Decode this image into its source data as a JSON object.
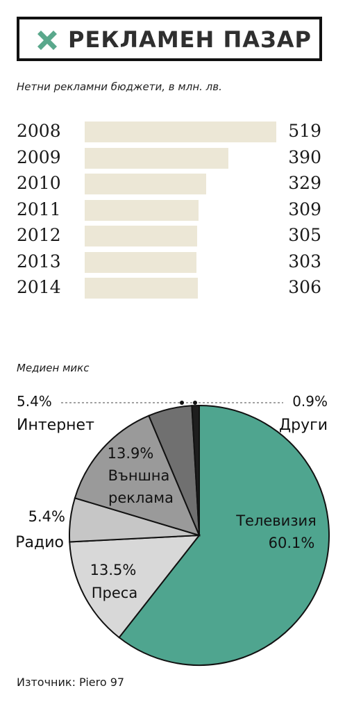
{
  "title": "РЕКЛАМЕН ПАЗАР",
  "subtitle": "Нетни рекламни бюджети, в млн. лв.",
  "colors": {
    "bar": "#ece7d6",
    "accent": "#5aa88c",
    "television": "#4fa58f",
    "press": "#d8d8d8",
    "radio": "#c6c6c6",
    "outdoor": "#9a9a9a",
    "internet": "#707070",
    "other": "#1e1e1e"
  },
  "chart_data": [
    {
      "type": "bar",
      "orientation": "horizontal",
      "title": "Нетни рекламни бюджети, в млн. лв.",
      "categories": [
        "2008",
        "2009",
        "2010",
        "2011",
        "2012",
        "2013",
        "2014"
      ],
      "values": [
        519,
        390,
        329,
        309,
        305,
        303,
        306
      ],
      "value_labels": [
        "519",
        "390",
        "329",
        "309",
        "305",
        "303",
        "306"
      ]
    },
    {
      "type": "pie",
      "title": "Медиен микс",
      "slices": [
        {
          "name": "Телевизия",
          "value": 60.1,
          "label": "60.1%"
        },
        {
          "name": "Преса",
          "value": 13.5,
          "label": "13.5%"
        },
        {
          "name": "Радио",
          "value": 5.4,
          "label": "5.4%"
        },
        {
          "name": "Външна реклама",
          "value": 13.9,
          "label": "13.9%",
          "name_lines": [
            "Външна",
            "реклама"
          ]
        },
        {
          "name": "Интернет",
          "value": 5.4,
          "label": "5.4%"
        },
        {
          "name": "Други",
          "value": 0.9,
          "label": "0.9%"
        }
      ]
    }
  ],
  "mix_label": "Медиен микс",
  "source": "Източник: Piero 97"
}
